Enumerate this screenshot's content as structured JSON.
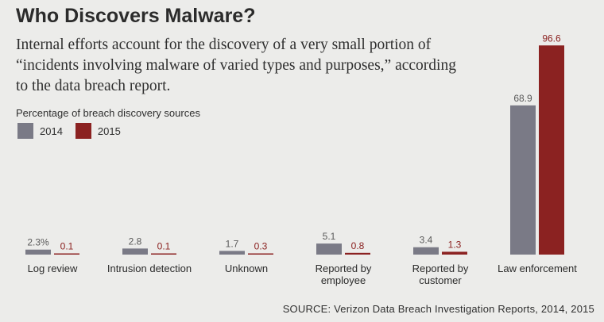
{
  "title": "Who Discovers Malware?",
  "subtitle": "Internal efforts account for the discovery of a very small portion of “incidents involving malware of varied types and purposes,” according to the data breach report.",
  "source": "SOURCE: Verizon Data Breach Investigation Reports, 2014, 2015",
  "colors": {
    "s2014": "#7a7a86",
    "s2015": "#8b2221"
  },
  "chart_data": {
    "type": "bar",
    "title": "Percentage of breach discovery sources",
    "categories": [
      [
        "Log review"
      ],
      [
        "Intrusion detection"
      ],
      [
        "Unknown"
      ],
      [
        "Reported by",
        "employee"
      ],
      [
        "Reported by",
        "customer"
      ],
      [
        "Law enforcement"
      ]
    ],
    "series": [
      {
        "name": "2014",
        "values": [
          2.3,
          2.8,
          1.7,
          5.1,
          3.4,
          68.9
        ],
        "labels": [
          "2.3%",
          "2.8",
          "1.7",
          "5.1",
          "3.4",
          "68.9"
        ]
      },
      {
        "name": "2015",
        "values": [
          0.1,
          0.1,
          0.3,
          0.8,
          1.3,
          96.6
        ],
        "labels": [
          "0.1",
          "0.1",
          "0.3",
          "0.8",
          "1.3",
          "96.6"
        ]
      }
    ],
    "ylim": [
      0,
      100
    ]
  }
}
